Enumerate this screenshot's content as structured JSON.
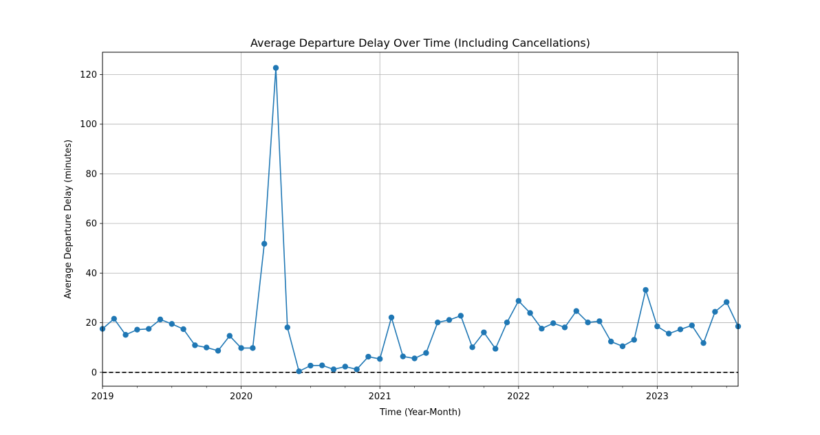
{
  "chart_data": {
    "type": "line",
    "title": "Average Departure Delay Over Time (Including Cancellations)",
    "xlabel": "Time (Year-Month)",
    "ylabel": "Average Departure Delay (minutes)",
    "x_tick_labels": [
      "2019",
      "2020",
      "2021",
      "2022",
      "2023"
    ],
    "y_tick_labels": [
      "0",
      "20",
      "40",
      "60",
      "80",
      "100",
      "120"
    ],
    "xlim": [
      "2019-01",
      "2023-08"
    ],
    "ylim": [
      -5.6,
      129
    ],
    "grid": true,
    "reference_line": {
      "y": 0,
      "style": "dashed",
      "color": "#000000"
    },
    "series": [
      {
        "color": "#1f77b4",
        "marker": "circle",
        "x": [
          "2019-01",
          "2019-02",
          "2019-03",
          "2019-04",
          "2019-05",
          "2019-06",
          "2019-07",
          "2019-08",
          "2019-09",
          "2019-10",
          "2019-11",
          "2019-12",
          "2020-01",
          "2020-02",
          "2020-03",
          "2020-04",
          "2020-05",
          "2020-06",
          "2020-07",
          "2020-08",
          "2020-09",
          "2020-10",
          "2020-11",
          "2020-12",
          "2021-01",
          "2021-02",
          "2021-03",
          "2021-04",
          "2021-05",
          "2021-06",
          "2021-07",
          "2021-08",
          "2021-09",
          "2021-10",
          "2021-11",
          "2021-12",
          "2022-01",
          "2022-02",
          "2022-03",
          "2022-04",
          "2022-05",
          "2022-06",
          "2022-07",
          "2022-08",
          "2022-09",
          "2022-10",
          "2022-11",
          "2022-12",
          "2023-01",
          "2023-02",
          "2023-03",
          "2023-04",
          "2023-05",
          "2023-06",
          "2023-07",
          "2023-08"
        ],
        "y": [
          17.5,
          21.6,
          15.1,
          17.2,
          17.5,
          21.3,
          19.5,
          17.4,
          10.9,
          10.0,
          8.7,
          14.7,
          9.8,
          9.8,
          51.8,
          122.7,
          18.1,
          0.4,
          2.7,
          2.8,
          1.2,
          2.3,
          1.2,
          6.3,
          5.4,
          22.1,
          6.4,
          5.6,
          7.8,
          20.1,
          21.1,
          22.8,
          10.1,
          16.1,
          9.5,
          20.1,
          28.8,
          23.9,
          17.6,
          19.8,
          18.1,
          24.7,
          20.1,
          20.6,
          12.4,
          10.5,
          13.1,
          33.2,
          18.5,
          15.6,
          17.3,
          18.9,
          11.8,
          24.4,
          28.3,
          18.5
        ]
      }
    ]
  }
}
